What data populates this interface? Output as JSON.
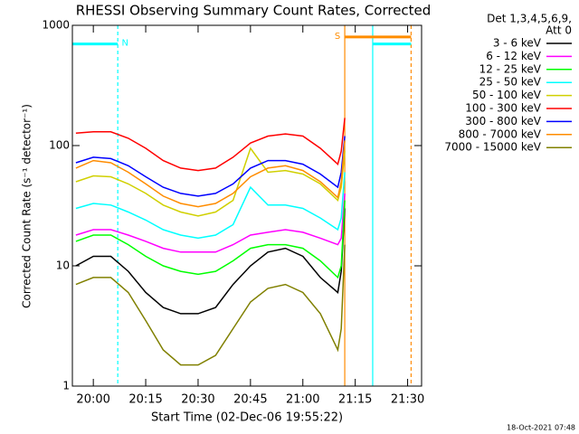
{
  "chart_data": {
    "type": "line",
    "title": "RHESSI Observing Summary Count Rates, Corrected",
    "xlabel": "Start Time (02-Dec-06 19:55:22)",
    "ylabel": "Corrected Count Rate (s⁻¹ detector⁻¹)",
    "legend_header": [
      "Det 1,3,4,5,6,9,",
      "Att 0"
    ],
    "timestamp": "18-Oct-2021 07:48",
    "log_y": true,
    "xlim": [
      "19:54",
      "21:34"
    ],
    "xticks": [
      "20:00",
      "20:15",
      "20:30",
      "20:45",
      "21:00",
      "21:15",
      "21:30"
    ],
    "ylim": [
      1,
      1000
    ],
    "yticks": [
      1,
      10,
      100,
      1000
    ],
    "x": [
      "19:55",
      "20:00",
      "20:05",
      "20:10",
      "20:15",
      "20:20",
      "20:25",
      "20:30",
      "20:35",
      "20:40",
      "20:45",
      "20:50",
      "20:55",
      "21:00",
      "21:05",
      "21:10",
      "21:11",
      "21:12"
    ],
    "series": [
      {
        "name": "3 - 6 keV",
        "color": "#000000",
        "values": [
          10,
          12,
          12,
          9,
          6,
          4.5,
          4,
          4,
          4.5,
          7,
          10,
          13,
          14,
          12,
          8,
          6,
          9,
          30
        ]
      },
      {
        "name": "6 - 12 keV",
        "color": "#ff00ff",
        "values": [
          18,
          20,
          20,
          18,
          16,
          14,
          13,
          13,
          13,
          15,
          18,
          19,
          20,
          19,
          17,
          15,
          17,
          40
        ]
      },
      {
        "name": "12 - 25 keV",
        "color": "#00ff00",
        "values": [
          16,
          18,
          18,
          15,
          12,
          10,
          9,
          8.5,
          9,
          11,
          14,
          15,
          15,
          14,
          11,
          8,
          10,
          35
        ]
      },
      {
        "name": "25 - 50 keV",
        "color": "#00ffff",
        "values": [
          30,
          33,
          32,
          28,
          24,
          20,
          18,
          17,
          18,
          22,
          45,
          32,
          32,
          30,
          25,
          20,
          25,
          60
        ]
      },
      {
        "name": "50 - 100 keV",
        "color": "#d0d000",
        "values": [
          50,
          56,
          55,
          48,
          40,
          32,
          28,
          26,
          28,
          35,
          95,
          60,
          62,
          58,
          48,
          35,
          45,
          90
        ]
      },
      {
        "name": "100 - 300 keV",
        "color": "#ff0000",
        "values": [
          127,
          130,
          130,
          115,
          95,
          75,
          65,
          62,
          65,
          80,
          105,
          120,
          125,
          120,
          95,
          70,
          90,
          170
        ]
      },
      {
        "name": "300 - 800 keV",
        "color": "#0000ff",
        "values": [
          72,
          80,
          78,
          68,
          55,
          45,
          40,
          38,
          40,
          48,
          65,
          75,
          75,
          70,
          58,
          45,
          60,
          120
        ]
      },
      {
        "name": "800 - 7000 keV",
        "color": "#ff8c00",
        "values": [
          65,
          75,
          72,
          60,
          48,
          38,
          33,
          31,
          33,
          40,
          55,
          65,
          68,
          62,
          50,
          37,
          50,
          110
        ]
      },
      {
        "name": "7000 - 15000 keV",
        "color": "#808000",
        "values": [
          7,
          8,
          8,
          6,
          3.5,
          2,
          1.5,
          1.5,
          1.8,
          3,
          5,
          6.5,
          7,
          6,
          4,
          2,
          3,
          15
        ]
      }
    ],
    "vlines": [
      {
        "x": "20:07",
        "color": "#00ffff",
        "dash": true
      },
      {
        "x": "21:12",
        "color": "#ff8c00",
        "dash": false
      },
      {
        "x": "21:20",
        "color": "#00ffff",
        "dash": false
      },
      {
        "x": "21:31",
        "color": "#ff8c00",
        "dash": true
      }
    ],
    "bars": [
      {
        "text": "N",
        "x": [
          "19:54",
          "20:07"
        ],
        "y": 700,
        "color": "#00ffff"
      },
      {
        "text": "S",
        "x": [
          "21:12",
          "21:31"
        ],
        "y": 800,
        "color": "#ff8c00"
      },
      {
        "x": [
          "21:20",
          "21:31"
        ],
        "y": 700,
        "color": "#00ffff"
      }
    ]
  }
}
